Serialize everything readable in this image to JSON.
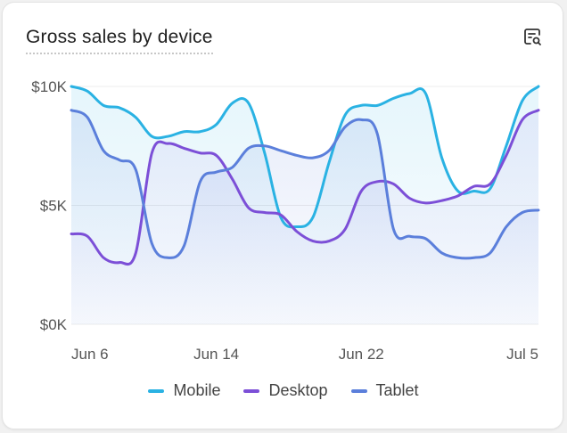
{
  "card": {
    "title": "Gross sales by device",
    "icon": "search-chart-icon"
  },
  "chart_data": {
    "type": "area",
    "title": "Gross sales by device",
    "xlabel": "",
    "ylabel": "",
    "x_tick_labels": [
      "Jun 6",
      "Jun 14",
      "Jun 22",
      "Jul 5"
    ],
    "x_tick_index": [
      0,
      9,
      18,
      29
    ],
    "y_ticks": [
      {
        "value": 0,
        "label": "$0K"
      },
      {
        "value": 5000,
        "label": "$5K"
      },
      {
        "value": 10000,
        "label": "$10K"
      }
    ],
    "ylim": [
      0,
      10000
    ],
    "grid": true,
    "legend": "bottom-center",
    "series": [
      {
        "name": "Mobile",
        "color": "#2ab2e3",
        "values": [
          10000,
          9800,
          9200,
          9100,
          8700,
          7900,
          7900,
          8100,
          8100,
          8400,
          9300,
          9300,
          7200,
          4500,
          4100,
          4500,
          6800,
          8800,
          9200,
          9200,
          9500,
          9700,
          9700,
          7000,
          5600,
          5600,
          5700,
          7500,
          9400,
          10000
        ]
      },
      {
        "name": "Desktop",
        "color": "#7c4fd7",
        "values": [
          3800,
          3700,
          2800,
          2600,
          3000,
          7200,
          7600,
          7400,
          7200,
          7100,
          6100,
          4900,
          4700,
          4600,
          3900,
          3500,
          3500,
          4000,
          5600,
          6000,
          5900,
          5300,
          5100,
          5200,
          5400,
          5800,
          5900,
          7100,
          8600,
          9000
        ]
      },
      {
        "name": "Tablet",
        "color": "#5b7fdb",
        "values": [
          9000,
          8700,
          7300,
          6900,
          6500,
          3400,
          2800,
          3300,
          6000,
          6400,
          6600,
          7400,
          7500,
          7300,
          7100,
          7000,
          7300,
          8300,
          8600,
          8000,
          4000,
          3700,
          3600,
          3000,
          2800,
          2800,
          3000,
          4100,
          4700,
          4800
        ]
      }
    ]
  }
}
